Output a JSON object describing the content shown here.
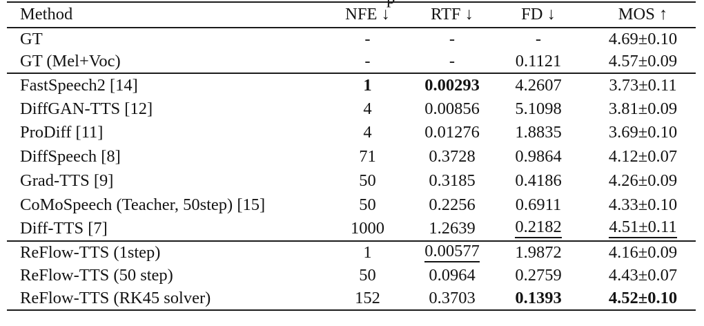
{
  "caption_fragment": "p",
  "table": {
    "headers": {
      "method": "Method",
      "nfe": "NFE ↓",
      "rtf": "RTF ↓",
      "fd": "FD ↓",
      "mos": "MOS ↑"
    },
    "groups": [
      {
        "rows": [
          {
            "method": "GT",
            "nfe": "-",
            "rtf": "-",
            "fd": "-",
            "mos": "4.69±0.10"
          },
          {
            "method": "GT (Mel+Voc)",
            "nfe": "-",
            "rtf": "-",
            "fd": "0.1121",
            "mos": "4.57±0.09"
          }
        ]
      },
      {
        "rows": [
          {
            "method": "FastSpeech2 [14]",
            "nfe": "1",
            "rtf": "0.00293",
            "fd": "4.2607",
            "mos": "3.73±0.11"
          },
          {
            "method": "DiffGAN-TTS [12]",
            "nfe": "4",
            "rtf": "0.00856",
            "fd": "5.1098",
            "mos": "3.81±0.09"
          },
          {
            "method": "ProDiff [11]",
            "nfe": "4",
            "rtf": "0.01276",
            "fd": "1.8835",
            "mos": "3.69±0.10"
          },
          {
            "method": "DiffSpeech [8]",
            "nfe": "71",
            "rtf": "0.3728",
            "fd": "0.9864",
            "mos": "4.12±0.07"
          },
          {
            "method": "Grad-TTS [9]",
            "nfe": "50",
            "rtf": "0.3185",
            "fd": "0.4186",
            "mos": "4.26±0.09"
          },
          {
            "method": "CoMoSpeech (Teacher, 50step) [15]",
            "nfe": "50",
            "rtf": "0.2256",
            "fd": "0.6911",
            "mos": "4.33±0.10"
          },
          {
            "method": "Diff-TTS [7]",
            "nfe": "1000",
            "rtf": "1.2639",
            "fd": "0.2182",
            "mos": "4.51±0.11"
          }
        ]
      },
      {
        "rows": [
          {
            "method": "ReFlow-TTS (1step)",
            "nfe": "1",
            "rtf": "0.00577",
            "fd": "1.9872",
            "mos": "4.16±0.09"
          },
          {
            "method": "ReFlow-TTS (50 step)",
            "nfe": "50",
            "rtf": "0.0964",
            "fd": "0.2759",
            "mos": "4.43±0.07"
          },
          {
            "method": "ReFlow-TTS (RK45 solver)",
            "nfe": "152",
            "rtf": "0.3703",
            "fd": "0.1393",
            "mos": "4.52±0.10"
          }
        ]
      }
    ]
  }
}
